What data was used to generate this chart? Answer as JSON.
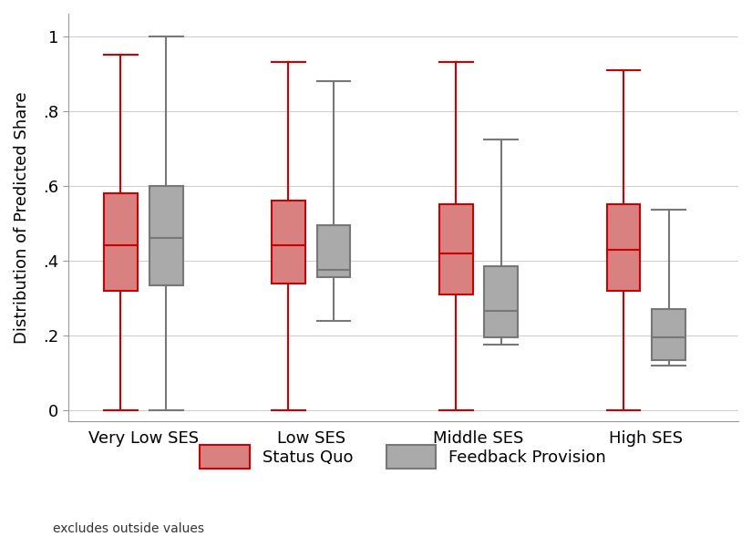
{
  "categories": [
    "Very Low SES",
    "Low SES",
    "Middle SES",
    "High SES"
  ],
  "status_quo": [
    {
      "whislo": 0.0,
      "q1": 0.32,
      "med": 0.44,
      "q3": 0.58,
      "whishi": 0.95
    },
    {
      "whislo": 0.0,
      "q1": 0.34,
      "med": 0.44,
      "q3": 0.56,
      "whishi": 0.93
    },
    {
      "whislo": 0.0,
      "q1": 0.31,
      "med": 0.42,
      "q3": 0.55,
      "whishi": 0.93
    },
    {
      "whislo": 0.0,
      "q1": 0.32,
      "med": 0.43,
      "q3": 0.55,
      "whishi": 0.91
    }
  ],
  "feedback": [
    {
      "whislo": 0.0,
      "q1": 0.335,
      "med": 0.46,
      "q3": 0.6,
      "whishi": 1.0
    },
    {
      "whislo": 0.24,
      "q1": 0.355,
      "med": 0.375,
      "q3": 0.495,
      "whishi": 0.88
    },
    {
      "whislo": 0.175,
      "q1": 0.195,
      "med": 0.265,
      "q3": 0.385,
      "whishi": 0.725
    },
    {
      "whislo": 0.12,
      "q1": 0.135,
      "med": 0.195,
      "q3": 0.27,
      "whishi": 0.535
    }
  ],
  "sq_color": "#d98080",
  "sq_edge_color": "#cc0000",
  "fb_color": "#aaaaaa",
  "fb_edge_color": "#777777",
  "ylabel": "Distribution of Predicted Share",
  "ylim": [
    -0.03,
    1.06
  ],
  "yticks": [
    0.0,
    0.2,
    0.4,
    0.6,
    0.8,
    1.0
  ],
  "yticklabels": [
    "0",
    ".2",
    ".4",
    ".6",
    ".8",
    "1"
  ],
  "legend_sq_label": "Status Quo",
  "legend_fb_label": "Feedback Provision",
  "footnote": "excludes outside values",
  "background_color": "#ffffff",
  "grid_color": "#d0d0d0"
}
